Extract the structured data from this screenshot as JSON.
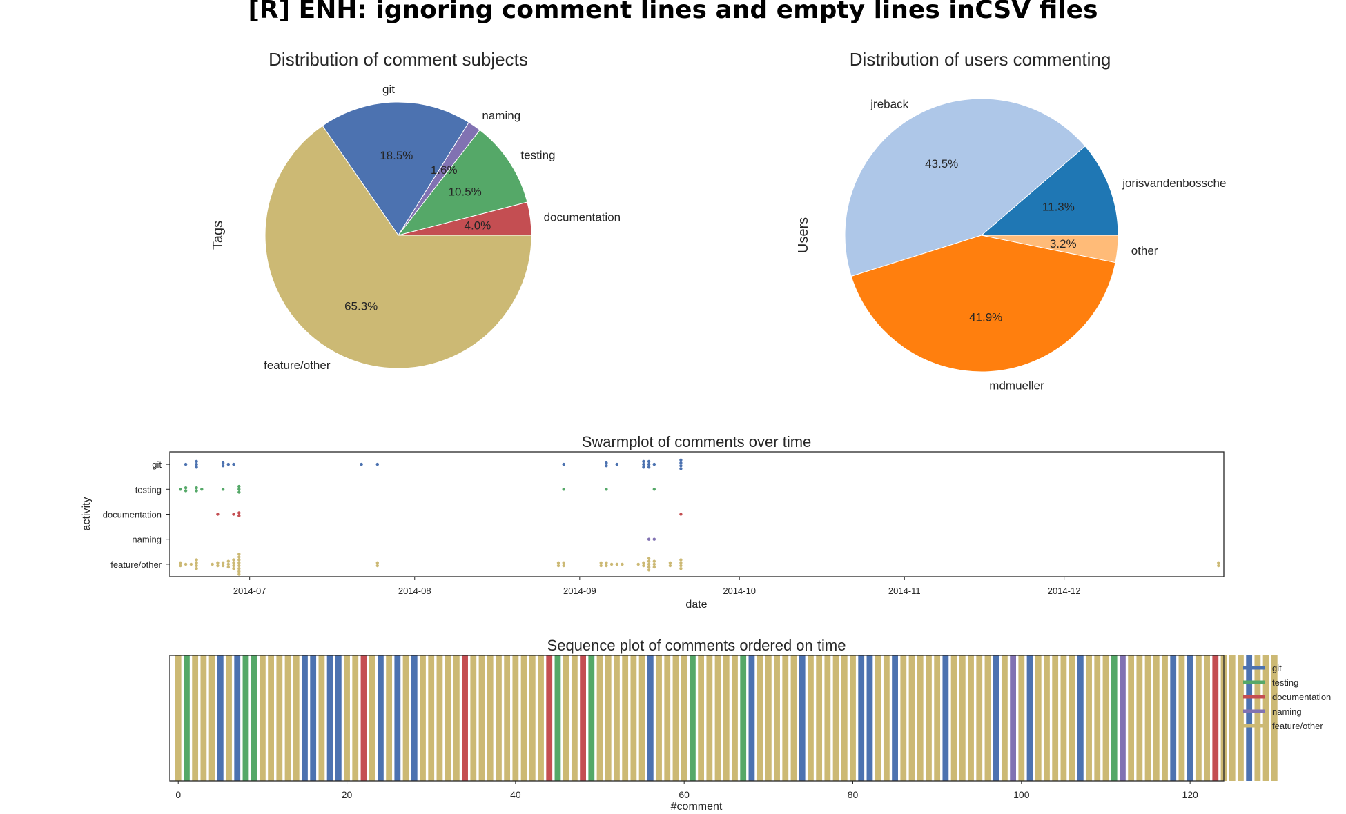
{
  "title": "[R] ENH: ignoring comment lines and empty lines inCSV files",
  "colors": {
    "git": "#4c72b0",
    "testing": "#55a868",
    "documentation": "#c44e52",
    "naming": "#8172b2",
    "feature/other": "#ccb974",
    "jorisvandenbossche": "#1f77b4",
    "jreback": "#aec7e8",
    "mdmueller": "#ff7f0e",
    "other": "#ffbb78"
  },
  "chart_data": [
    {
      "type": "pie",
      "title": "Distribution of comment subjects",
      "ylabel": "Tags",
      "slices": [
        {
          "label": "documentation",
          "value": 4.0,
          "pct": "4.0%",
          "color": "#c44e52"
        },
        {
          "label": "testing",
          "value": 10.5,
          "pct": "10.5%",
          "color": "#55a868"
        },
        {
          "label": "naming",
          "value": 1.6,
          "pct": "1.6%",
          "color": "#8172b2"
        },
        {
          "label": "git",
          "value": 18.5,
          "pct": "18.5%",
          "color": "#4c72b0"
        },
        {
          "label": "feature/other",
          "value": 65.3,
          "pct": "65.3%",
          "color": "#ccb974"
        }
      ]
    },
    {
      "type": "pie",
      "title": "Distribution of users commenting",
      "ylabel": "Users",
      "slices": [
        {
          "label": "jorisvandenbossche",
          "value": 11.3,
          "pct": "11.3%",
          "color": "#1f77b4"
        },
        {
          "label": "jreback",
          "value": 43.5,
          "pct": "43.5%",
          "color": "#aec7e8"
        },
        {
          "label": "mdmueller",
          "value": 41.9,
          "pct": "41.9%",
          "color": "#ff7f0e"
        },
        {
          "label": "other",
          "value": 3.2,
          "pct": "3.2%",
          "color": "#ffbb78"
        }
      ]
    },
    {
      "type": "scatter",
      "title": "Swarmplot of comments over time",
      "xlabel": "date",
      "ylabel": "activity",
      "categories": [
        "git",
        "testing",
        "documentation",
        "naming",
        "feature/other"
      ],
      "xlim": [
        "2014-06-16",
        "2014-12-31"
      ],
      "xticks": [
        "2014-07",
        "2014-08",
        "2014-09",
        "2014-10",
        "2014-11",
        "2014-12"
      ],
      "xtick_dates": [
        "2014-07-01",
        "2014-08-01",
        "2014-09-01",
        "2014-10-01",
        "2014-11-01",
        "2014-12-01"
      ],
      "points": [
        {
          "category": "git",
          "dates": [
            "2014-06-19",
            "2014-06-21",
            "2014-06-21",
            "2014-06-21",
            "2014-06-26",
            "2014-06-26",
            "2014-06-27",
            "2014-06-28",
            "2014-07-22",
            "2014-07-25",
            "2014-08-29",
            "2014-09-06",
            "2014-09-06",
            "2014-09-08",
            "2014-09-13",
            "2014-09-13",
            "2014-09-13",
            "2014-09-14",
            "2014-09-14",
            "2014-09-14",
            "2014-09-15",
            "2014-09-20",
            "2014-09-20",
            "2014-09-20",
            "2014-09-20"
          ]
        },
        {
          "category": "testing",
          "dates": [
            "2014-06-18",
            "2014-06-19",
            "2014-06-19",
            "2014-06-21",
            "2014-06-21",
            "2014-06-22",
            "2014-06-26",
            "2014-06-29",
            "2014-06-29",
            "2014-06-29",
            "2014-08-29",
            "2014-09-06",
            "2014-09-15"
          ]
        },
        {
          "category": "documentation",
          "dates": [
            "2014-06-25",
            "2014-06-28",
            "2014-06-29",
            "2014-06-29",
            "2014-09-20"
          ]
        },
        {
          "category": "naming",
          "dates": [
            "2014-09-14",
            "2014-09-15"
          ]
        },
        {
          "category": "feature/other",
          "dates": [
            "2014-06-18",
            "2014-06-18",
            "2014-06-19",
            "2014-06-20",
            "2014-06-21",
            "2014-06-21",
            "2014-06-21",
            "2014-06-21",
            "2014-06-24",
            "2014-06-25",
            "2014-06-25",
            "2014-06-26",
            "2014-06-26",
            "2014-06-27",
            "2014-06-27",
            "2014-06-27",
            "2014-06-28",
            "2014-06-28",
            "2014-06-28",
            "2014-06-28",
            "2014-06-29",
            "2014-06-29",
            "2014-06-29",
            "2014-06-29",
            "2014-06-29",
            "2014-06-29",
            "2014-06-29",
            "2014-06-29",
            "2014-07-25",
            "2014-07-25",
            "2014-08-28",
            "2014-08-28",
            "2014-08-29",
            "2014-08-29",
            "2014-09-05",
            "2014-09-05",
            "2014-09-06",
            "2014-09-06",
            "2014-09-07",
            "2014-09-08",
            "2014-09-09",
            "2014-09-12",
            "2014-09-13",
            "2014-09-13",
            "2014-09-14",
            "2014-09-14",
            "2014-09-14",
            "2014-09-14",
            "2014-09-14",
            "2014-09-15",
            "2014-09-15",
            "2014-09-15",
            "2014-09-18",
            "2014-09-18",
            "2014-09-20",
            "2014-09-20",
            "2014-09-20",
            "2014-09-20",
            "2014-12-30",
            "2014-12-30"
          ]
        }
      ]
    },
    {
      "type": "bar",
      "title": "Sequence plot of comments ordered on time",
      "xlabel": "#comment",
      "xlim": [
        -1,
        124
      ],
      "xticks": [
        0,
        20,
        40,
        60,
        80,
        100,
        120
      ],
      "legend_placement": "right",
      "legend": [
        "git",
        "testing",
        "documentation",
        "naming",
        "feature/other"
      ],
      "sequence_groups": [
        [
          "feature/other",
          1
        ],
        [
          "testing",
          1
        ],
        [
          "feature/other",
          3
        ],
        [
          "git",
          1
        ],
        [
          "feature/other",
          1
        ],
        [
          "git",
          1
        ],
        [
          "testing",
          2
        ],
        [
          "feature/other",
          5
        ],
        [
          "git",
          2
        ],
        [
          "feature/other",
          1
        ],
        [
          "git",
          2
        ],
        [
          "feature/other",
          2
        ],
        [
          "documentation",
          1
        ],
        [
          "feature/other",
          1
        ],
        [
          "git",
          1
        ],
        [
          "feature/other",
          1
        ],
        [
          "git",
          1
        ],
        [
          "feature/other",
          1
        ],
        [
          "git",
          1
        ],
        [
          "feature/other",
          5
        ],
        [
          "documentation",
          1
        ],
        [
          "feature/other",
          9
        ],
        [
          "documentation",
          1
        ],
        [
          "testing",
          1
        ],
        [
          "feature/other",
          2
        ],
        [
          "documentation",
          1
        ],
        [
          "testing",
          1
        ],
        [
          "feature/other",
          6
        ],
        [
          "git",
          1
        ],
        [
          "feature/other",
          4
        ],
        [
          "testing",
          1
        ],
        [
          "feature/other",
          5
        ],
        [
          "testing",
          1
        ],
        [
          "git",
          1
        ],
        [
          "feature/other",
          5
        ],
        [
          "git",
          1
        ],
        [
          "feature/other",
          6
        ],
        [
          "git",
          2
        ],
        [
          "feature/other",
          2
        ],
        [
          "git",
          1
        ],
        [
          "feature/other",
          5
        ],
        [
          "git",
          1
        ],
        [
          "feature/other",
          5
        ],
        [
          "git",
          1
        ],
        [
          "feature/other",
          1
        ],
        [
          "naming",
          1
        ],
        [
          "feature/other",
          1
        ],
        [
          "git",
          1
        ],
        [
          "feature/other",
          5
        ],
        [
          "git",
          1
        ],
        [
          "feature/other",
          3
        ],
        [
          "testing",
          1
        ],
        [
          "naming",
          1
        ],
        [
          "feature/other",
          5
        ],
        [
          "git",
          1
        ],
        [
          "feature/other",
          1
        ],
        [
          "git",
          1
        ],
        [
          "feature/other",
          2
        ],
        [
          "documentation",
          1
        ],
        [
          "feature/other",
          3
        ],
        [
          "git",
          1
        ],
        [
          "feature/other",
          3
        ]
      ]
    }
  ]
}
